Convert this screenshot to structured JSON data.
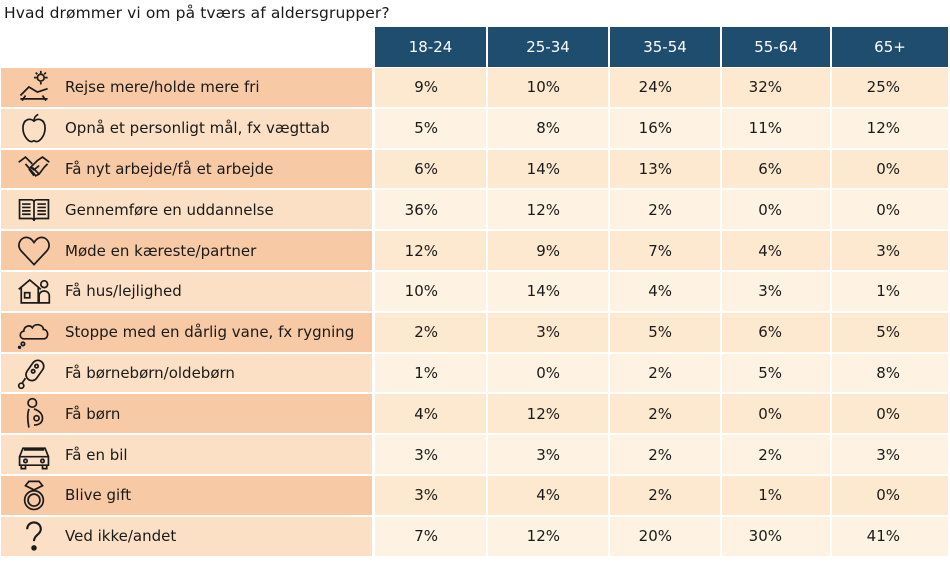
{
  "title": "Hvad drømmer vi om på tværs af aldersgrupper?",
  "colors": {
    "header_bg": "#1e4d6e",
    "label_dark": "#f7c9a4",
    "label_light": "#fbe0c6",
    "cell_dark": "#fde9cf",
    "cell_light": "#fef3e2"
  },
  "chart_data": {
    "type": "table",
    "columns": [
      "18-24",
      "25-34",
      "35-54",
      "55-64",
      "65+"
    ],
    "rows": [
      {
        "label": "Rejse mere/holde mere fri",
        "icon": "travel-icon",
        "values": [
          "9%",
          "10%",
          "24%",
          "32%",
          "25%"
        ]
      },
      {
        "label": "Opnå et personligt mål, fx vægttab",
        "icon": "apple-icon",
        "values": [
          "5%",
          "8%",
          "16%",
          "11%",
          "12%"
        ]
      },
      {
        "label": "Få nyt arbejde/få et arbejde",
        "icon": "handshake-icon",
        "values": [
          "6%",
          "14%",
          "13%",
          "6%",
          "0%"
        ]
      },
      {
        "label": "Gennemføre en uddannelse",
        "icon": "book-icon",
        "values": [
          "36%",
          "12%",
          "2%",
          "0%",
          "0%"
        ]
      },
      {
        "label": "Møde en kæreste/partner",
        "icon": "heart-icon",
        "values": [
          "12%",
          "9%",
          "7%",
          "4%",
          "3%"
        ]
      },
      {
        "label": "Få hus/lejlighed",
        "icon": "house-icon",
        "values": [
          "10%",
          "14%",
          "4%",
          "3%",
          "1%"
        ]
      },
      {
        "label": "Stoppe med en dårlig vane, fx rygning",
        "icon": "cloud-icon",
        "values": [
          "2%",
          "3%",
          "5%",
          "6%",
          "5%"
        ]
      },
      {
        "label": "Få børnebørn/oldebørn",
        "icon": "rattle-icon",
        "values": [
          "1%",
          "0%",
          "2%",
          "5%",
          "8%"
        ]
      },
      {
        "label": "Få børn",
        "icon": "pregnant-icon",
        "values": [
          "4%",
          "12%",
          "2%",
          "0%",
          "0%"
        ]
      },
      {
        "label": "Få en bil",
        "icon": "car-icon",
        "values": [
          "3%",
          "3%",
          "2%",
          "2%",
          "3%"
        ]
      },
      {
        "label": "Blive gift",
        "icon": "ring-icon",
        "values": [
          "3%",
          "4%",
          "2%",
          "1%",
          "0%"
        ]
      },
      {
        "label": "Ved ikke/andet",
        "icon": "question-icon",
        "values": [
          "7%",
          "12%",
          "20%",
          "30%",
          "41%"
        ]
      }
    ]
  }
}
